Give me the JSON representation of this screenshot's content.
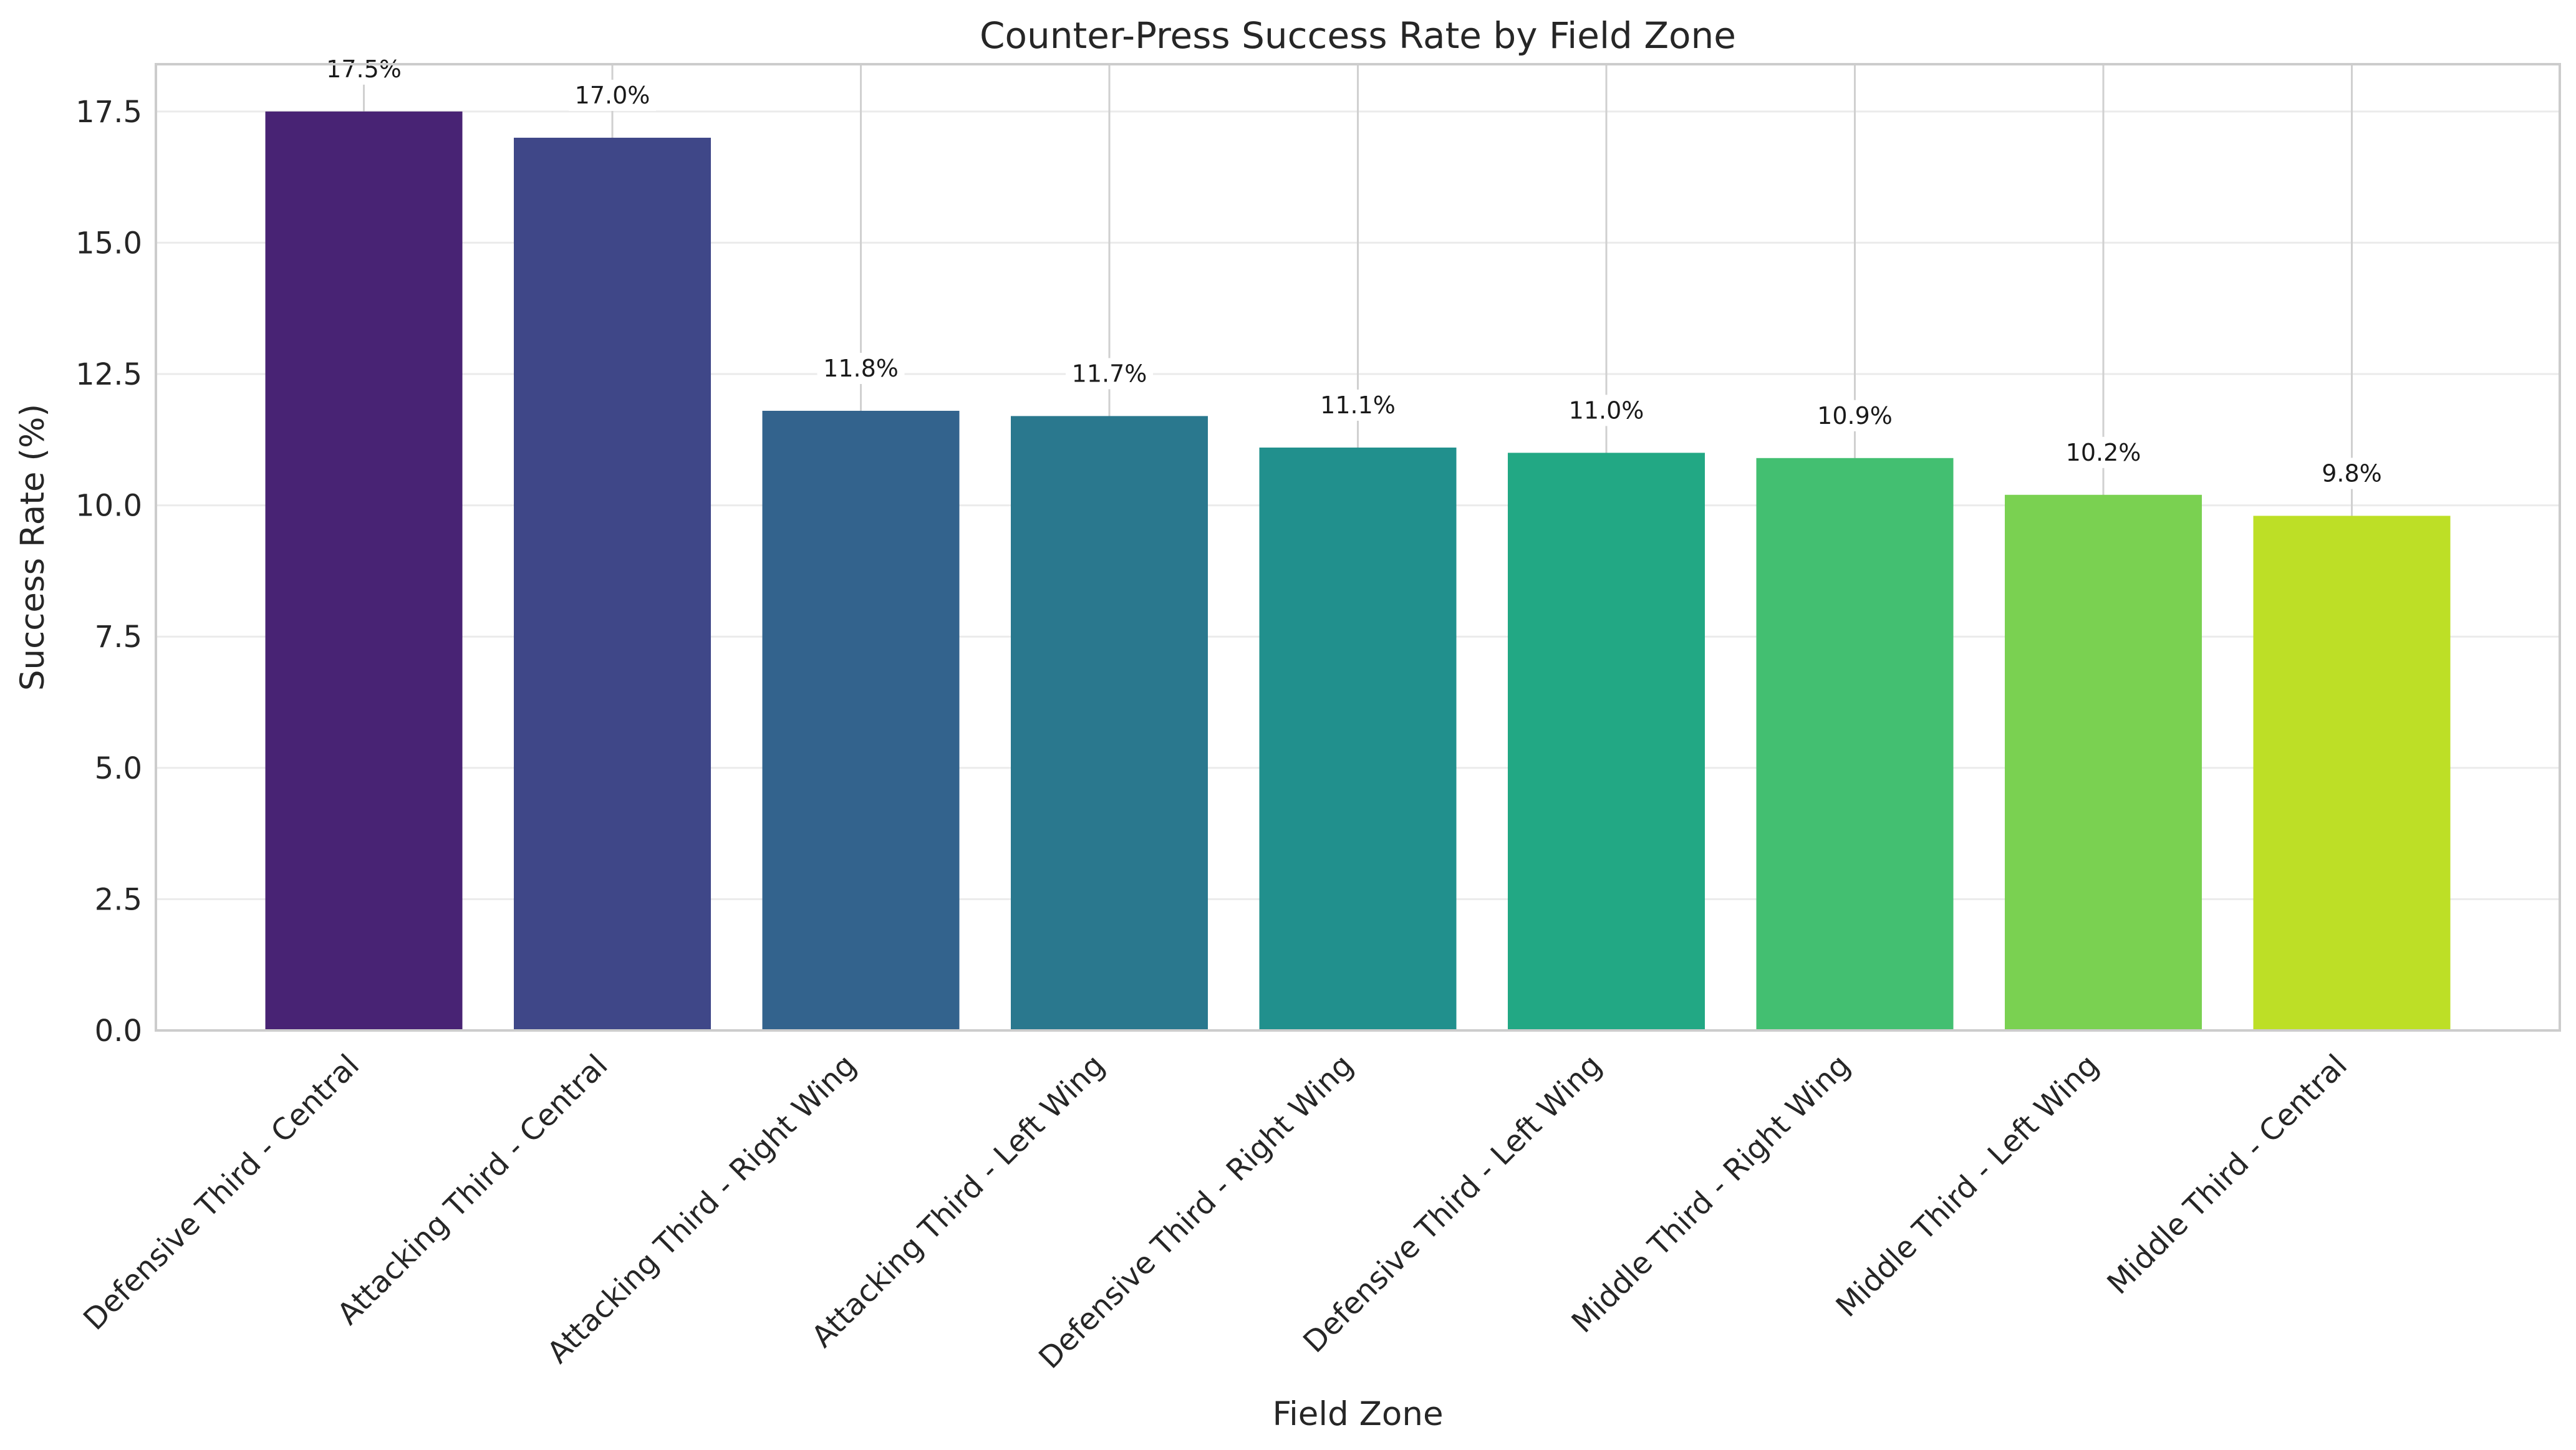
{
  "chart_data": {
    "type": "bar",
    "title": "Counter-Press Success Rate by Field Zone",
    "xlabel": "Field Zone",
    "ylabel": "Success Rate (%)",
    "ylim": [
      0,
      18.4
    ],
    "yticks": [
      "0.0",
      "2.5",
      "5.0",
      "7.5",
      "10.0",
      "12.5",
      "15.0",
      "17.5"
    ],
    "grid": true,
    "categories": [
      "Defensive Third - Central",
      "Attacking Third - Central",
      "Attacking Third - Right Wing",
      "Attacking Third - Left Wing",
      "Defensive Third - Right Wing",
      "Defensive Third - Left Wing",
      "Middle Third - Right Wing",
      "Middle Third - Left Wing",
      "Middle Third - Central"
    ],
    "values": [
      17.5,
      17.0,
      11.8,
      11.7,
      11.1,
      11.0,
      10.9,
      10.2,
      9.8
    ],
    "data_labels": [
      "17.5%",
      "17.0%",
      "11.8%",
      "11.7%",
      "11.1%",
      "11.0%",
      "10.9%",
      "10.2%",
      "9.8%"
    ],
    "colors": [
      "#482374",
      "#3f4788",
      "#33638d",
      "#2a788e",
      "#21908d",
      "#22a884",
      "#43bf71",
      "#7ad151",
      "#bddf26"
    ]
  }
}
